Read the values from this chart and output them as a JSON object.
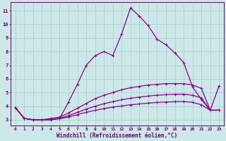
{
  "background_color": "#cce8e8",
  "grid_color": "#aacccc",
  "line_color": "#880088",
  "xlabel": "Windchill (Refroidissement éolien,°C)",
  "xlabel_color": "#660066",
  "tick_color": "#660066",
  "xlim": [
    -0.5,
    23.5
  ],
  "ylim": [
    2.6,
    11.6
  ],
  "xticks": [
    0,
    1,
    2,
    3,
    4,
    5,
    6,
    7,
    8,
    9,
    10,
    11,
    12,
    13,
    14,
    15,
    16,
    17,
    18,
    19,
    20,
    21,
    22,
    23
  ],
  "yticks": [
    3,
    4,
    5,
    6,
    7,
    8,
    9,
    10,
    11
  ],
  "line1_y": [
    3.9,
    3.1,
    3.0,
    3.0,
    3.0,
    3.1,
    4.3,
    5.6,
    7.0,
    7.7,
    8.0,
    7.7,
    9.3,
    11.2,
    10.6,
    9.9,
    8.9,
    8.5,
    7.9,
    7.2,
    5.4,
    4.5,
    3.7,
    5.5
  ],
  "line2_y": [
    3.9,
    3.1,
    3.0,
    3.0,
    3.1,
    3.2,
    3.5,
    3.85,
    4.2,
    4.55,
    4.8,
    5.0,
    5.2,
    5.35,
    5.45,
    5.55,
    5.6,
    5.65,
    5.65,
    5.65,
    5.55,
    5.3,
    3.7,
    3.7
  ],
  "line3_y": [
    3.9,
    3.1,
    3.0,
    3.0,
    3.0,
    3.12,
    3.3,
    3.55,
    3.78,
    4.0,
    4.18,
    4.33,
    4.47,
    4.58,
    4.66,
    4.74,
    4.8,
    4.84,
    4.87,
    4.88,
    4.8,
    4.6,
    3.7,
    3.7
  ],
  "line4_y": [
    3.9,
    3.1,
    3.0,
    3.0,
    3.0,
    3.08,
    3.2,
    3.38,
    3.55,
    3.7,
    3.82,
    3.93,
    4.02,
    4.1,
    4.16,
    4.22,
    4.27,
    4.3,
    4.33,
    4.34,
    4.28,
    4.1,
    3.7,
    3.7
  ],
  "markersize": 3,
  "linewidth": 0.9,
  "figsize": [
    3.2,
    2.0
  ],
  "dpi": 100
}
